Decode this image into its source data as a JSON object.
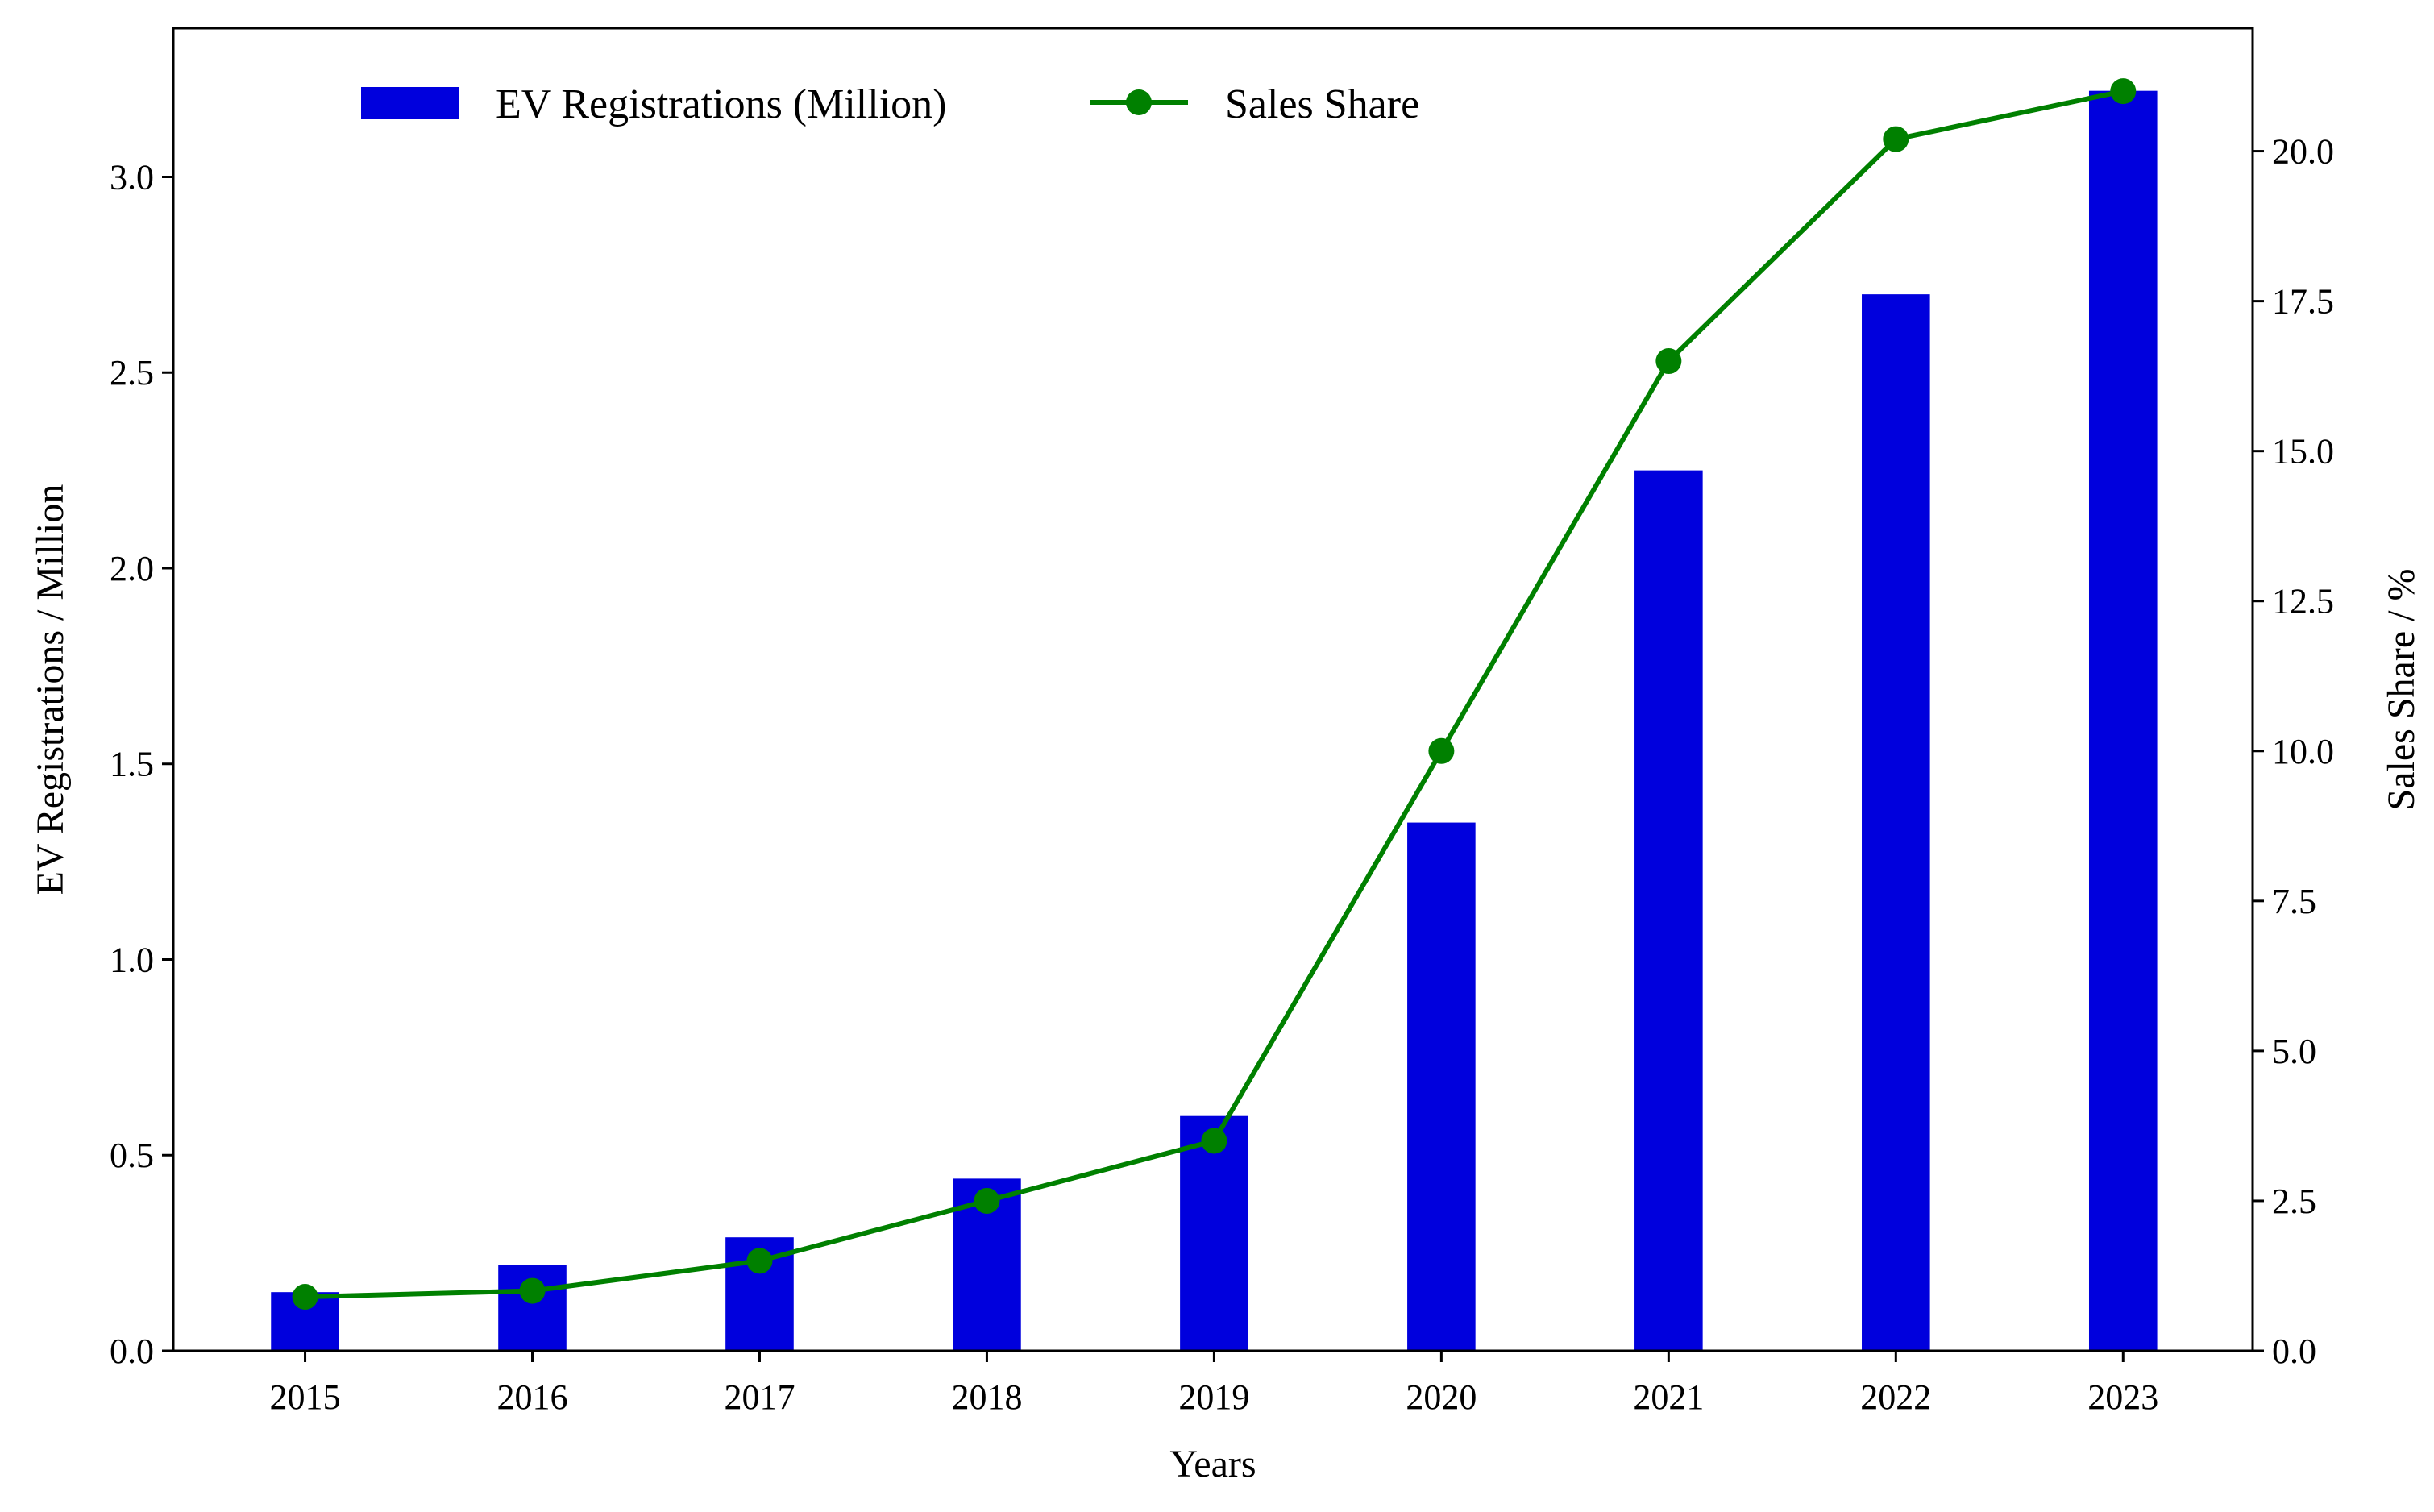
{
  "chart_data": {
    "type": "bar+line",
    "categories": [
      "2015",
      "2016",
      "2017",
      "2018",
      "2019",
      "2020",
      "2021",
      "2022",
      "2023"
    ],
    "series": [
      {
        "name": "EV Registrations (Million)",
        "type": "bar",
        "axis": "left",
        "color": "#0000dd",
        "values": [
          0.15,
          0.22,
          0.29,
          0.44,
          0.6,
          1.35,
          2.25,
          2.7,
          3.22
        ]
      },
      {
        "name": "Sales Share",
        "type": "line",
        "axis": "right",
        "color": "#008000",
        "marker": "circle",
        "values": [
          0.9,
          1.0,
          1.5,
          2.5,
          3.5,
          10.0,
          16.5,
          20.2,
          21.0
        ]
      }
    ],
    "xlabel": "Years",
    "ylabel": "EV Registrations / Million",
    "y2label": "Sales Share / %",
    "ylim": [
      0,
      3.38
    ],
    "y2lim": [
      0,
      22.05
    ],
    "yticks": [
      "0.0",
      "0.5",
      "1.0",
      "1.5",
      "2.0",
      "2.5",
      "3.0"
    ],
    "y2ticks": [
      "0.0",
      "2.5",
      "5.0",
      "7.5",
      "10.0",
      "12.5",
      "15.0",
      "17.5",
      "20.0"
    ],
    "legend": {
      "position": "top-left",
      "entries": [
        "EV Registrations (Million)",
        "Sales Share"
      ]
    },
    "grid": false
  }
}
